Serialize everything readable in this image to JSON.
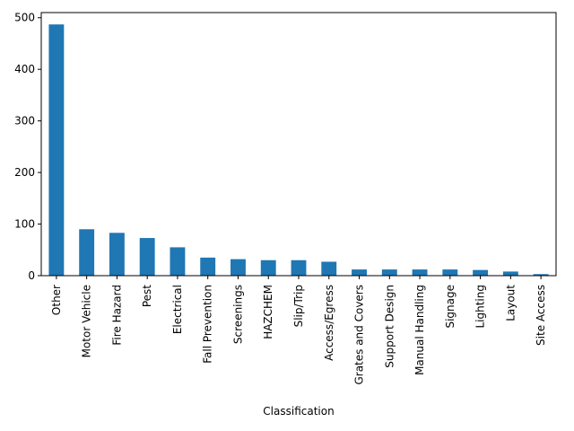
{
  "chart_data": {
    "type": "bar",
    "xlabel": "Classification",
    "ylabel": "",
    "ylim": [
      0,
      500
    ],
    "yticks": [
      0,
      100,
      200,
      300,
      400,
      500
    ],
    "grid": false,
    "bar_color": "#1f77b4",
    "categories": [
      "Other",
      "Motor Vehicle",
      "Fire Hazard",
      "Pest",
      "Electrical",
      "Fall Prevention",
      "Screenings",
      "HAZCHEM",
      "Slip/Trip",
      "Access/Egress",
      "Grates and Covers",
      "Support Design",
      "Manual Handling",
      "Signage",
      "Lighting",
      "Layout",
      "Site Access"
    ],
    "values": [
      487,
      90,
      83,
      73,
      55,
      35,
      32,
      30,
      30,
      27,
      12,
      12,
      12,
      12,
      11,
      8,
      3
    ]
  }
}
